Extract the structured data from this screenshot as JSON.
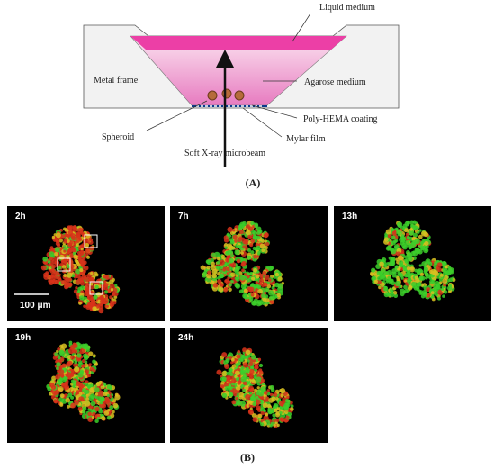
{
  "figure": {
    "panel_a": {
      "labels": {
        "liquid_medium": "Liquid medium",
        "metal_frame": "Metal frame",
        "agarose_medium": "Agarose medium",
        "poly_hema": "Poly-HEMA coating",
        "spheroid": "Spheroid",
        "mylar_film": "Mylar film",
        "microbeam": "Soft X-ray microbeam"
      },
      "caption": "(A)"
    },
    "panel_b": {
      "panels": [
        {
          "time": "2h"
        },
        {
          "time": "7h"
        },
        {
          "time": "13h"
        },
        {
          "time": "19h"
        },
        {
          "time": "24h"
        }
      ],
      "scale_bar": "100 μm",
      "caption": "(B)"
    }
  }
}
